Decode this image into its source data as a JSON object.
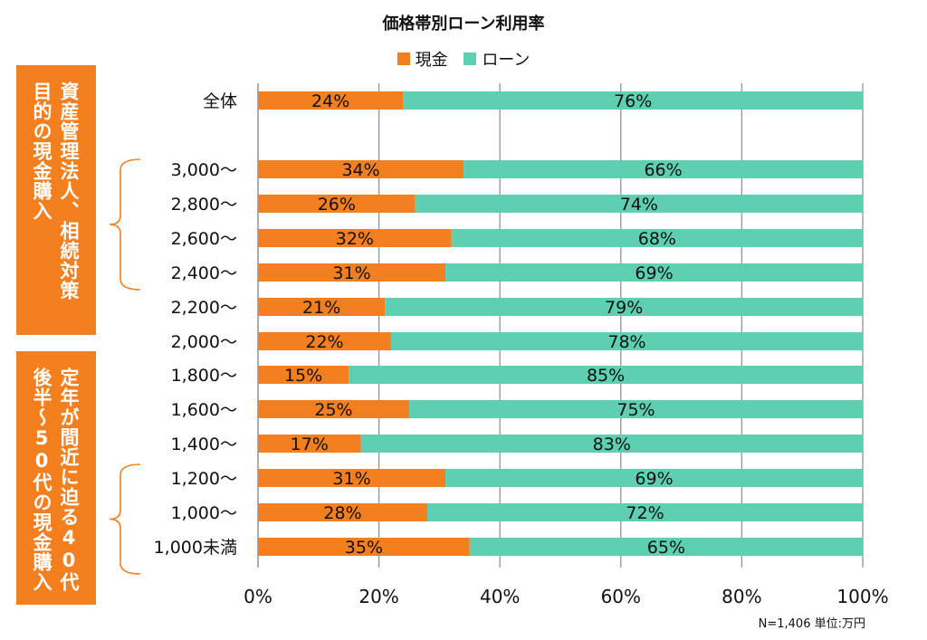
{
  "chart_data": {
    "type": "bar",
    "orientation": "horizontal",
    "stacked": true,
    "title": "価格帯別ローン利用率",
    "categories": [
      "全体",
      "3,000～",
      "2,800～",
      "2,600～",
      "2,400～",
      "2,200～",
      "2,000～",
      "1,800～",
      "1,600～",
      "1,400～",
      "1,200～",
      "1,000～",
      "1,000未満"
    ],
    "series": [
      {
        "name": "現金",
        "color": "#f47f1f",
        "values": [
          24,
          34,
          26,
          32,
          31,
          21,
          22,
          15,
          25,
          17,
          31,
          28,
          35
        ]
      },
      {
        "name": "ローン",
        "color": "#5ecfb0",
        "values": [
          76,
          66,
          74,
          68,
          69,
          79,
          78,
          85,
          75,
          83,
          69,
          72,
          65
        ]
      }
    ],
    "xlim": [
      0,
      100
    ],
    "x_ticks": [
      "0%",
      "20%",
      "40%",
      "60%",
      "80%",
      "100%"
    ],
    "grid": "vertical",
    "legend_placement": "top",
    "unit": "%"
  },
  "annotations": {
    "upper_group": {
      "lines": [
        "資産管理法人、相続対策",
        "目的の現金購入"
      ],
      "bracket_color": "#f47f1f"
    },
    "lower_group": {
      "lines": [
        "定年が間近に迫る40代",
        "後半～50代の現金購入"
      ],
      "bracket_color": "#f47f1f"
    },
    "footnote": "N=1,406 単位:万円"
  },
  "colors": {
    "cash": "#f47f1f",
    "loan": "#5ecfb0",
    "grid": "#999999",
    "accent_box": "#f47f1f"
  }
}
